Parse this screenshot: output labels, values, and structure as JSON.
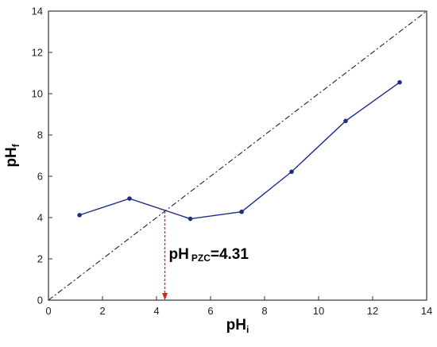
{
  "chart_data": {
    "type": "line",
    "xlabel": {
      "main": "pH",
      "sub": "i"
    },
    "ylabel": {
      "main": "pH",
      "sub": "f"
    },
    "xlim": [
      0,
      14
    ],
    "ylim": [
      0,
      14
    ],
    "xticks": [
      0,
      2,
      4,
      6,
      8,
      10,
      12,
      14
    ],
    "yticks": [
      0,
      2,
      4,
      6,
      8,
      10,
      12,
      14
    ],
    "grid": false,
    "series": [
      {
        "style": "line-with-markers",
        "color": "#1f2d8a",
        "x": [
          1.15,
          3.0,
          5.25,
          7.15,
          9.0,
          11.0,
          13.0
        ],
        "y": [
          4.12,
          4.92,
          3.94,
          4.28,
          6.22,
          8.68,
          10.55
        ]
      },
      {
        "style": "dash-dot",
        "color": "#222222",
        "x": [
          0,
          14
        ],
        "y": [
          0,
          14
        ]
      }
    ],
    "annotation": {
      "main": "pH",
      "sub": "PZC",
      "value_text": "=4.31",
      "x": 4.31,
      "y_top": 4.31,
      "y_bottom": 0,
      "arrow_color": "#e02020"
    }
  }
}
